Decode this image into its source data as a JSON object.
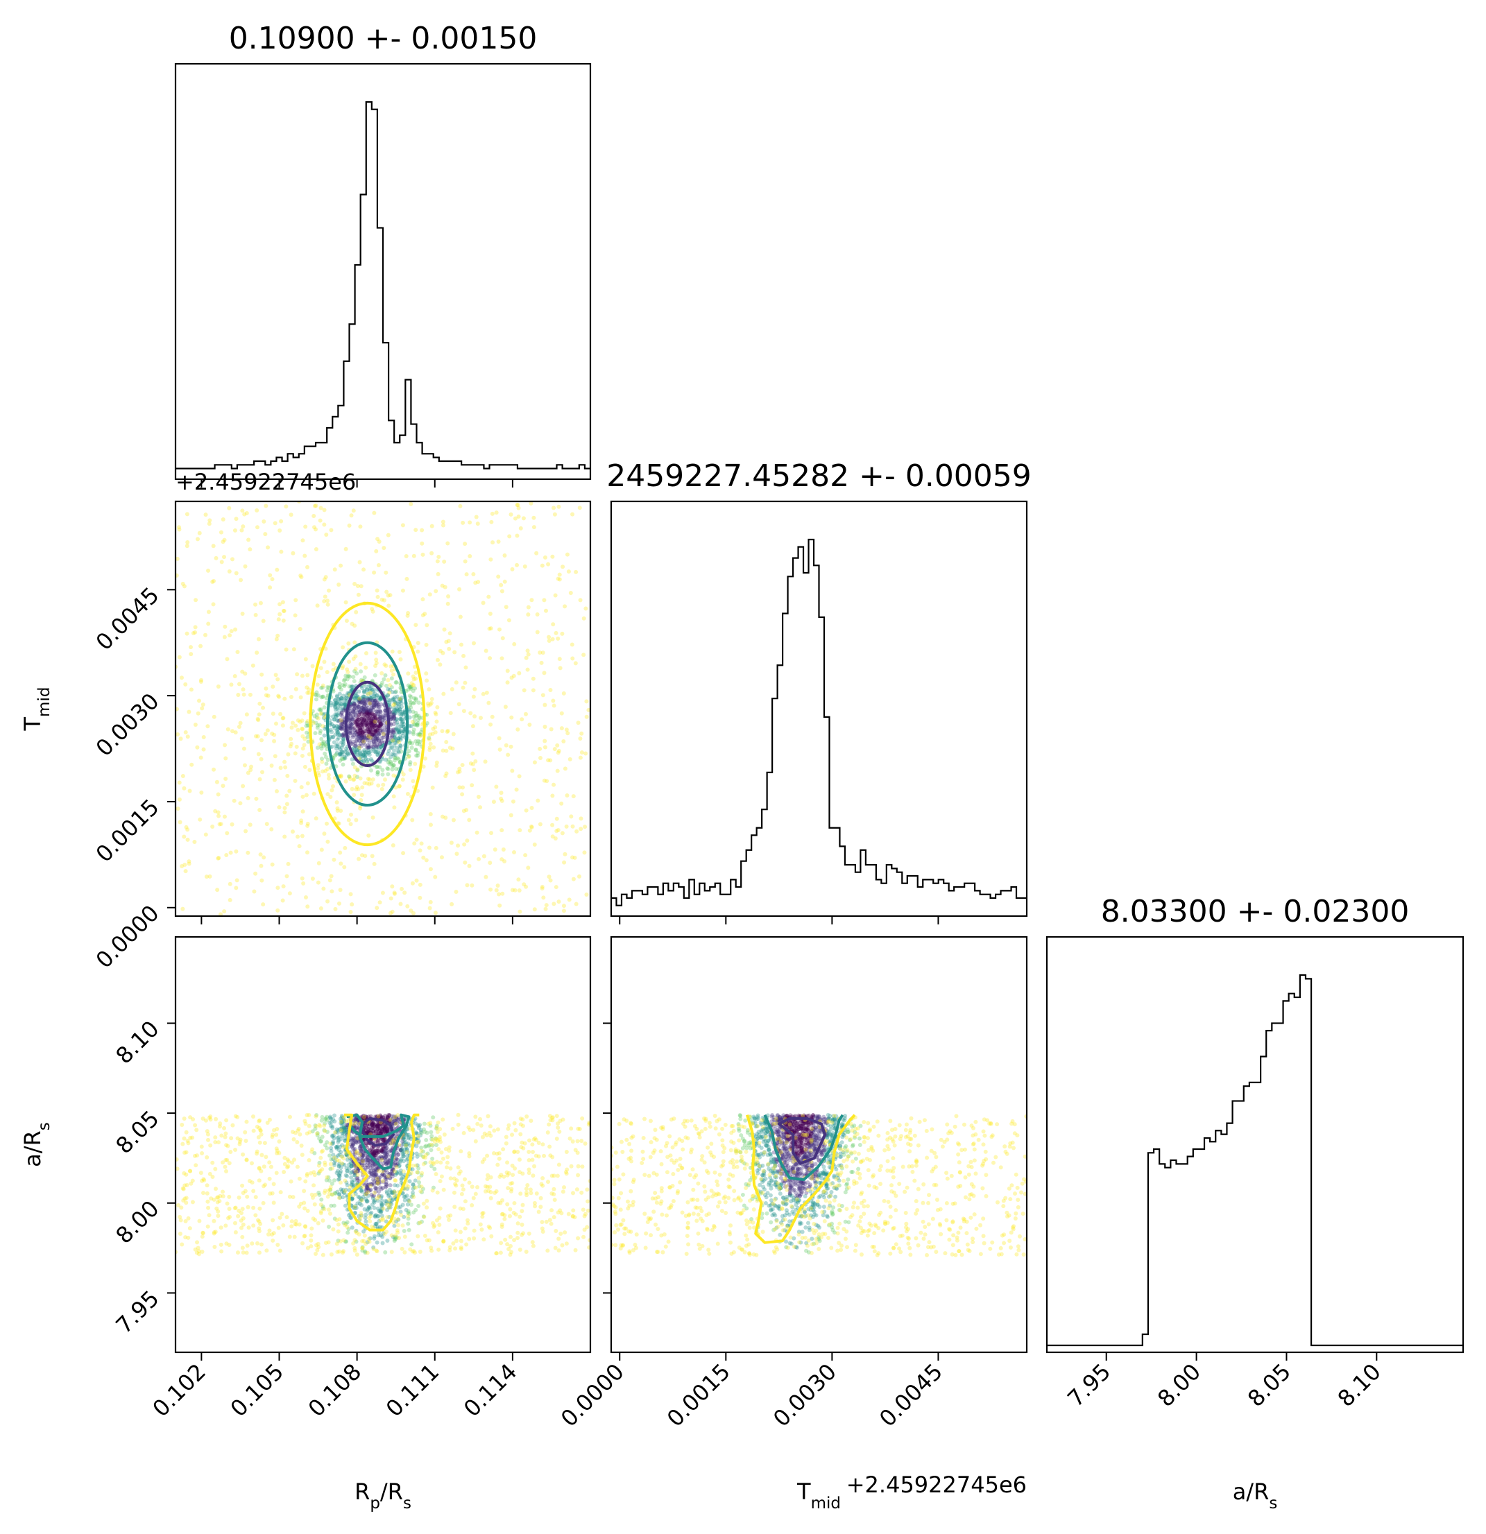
{
  "chart_data": {
    "type": "corner",
    "parameters": [
      {
        "key": "rp",
        "label": "R",
        "label_sub": "p",
        "label_rest": "/R",
        "label_sub2": "s",
        "range": [
          0.101,
          0.117
        ],
        "ticks": [
          "0.102",
          "0.105",
          "0.108",
          "0.111",
          "0.114"
        ],
        "tick_values": [
          0.102,
          0.105,
          0.108,
          0.111,
          0.114
        ],
        "offset": ""
      },
      {
        "key": "tmid",
        "label": "T",
        "label_sub": "mid",
        "label_rest": "",
        "label_sub2": "",
        "range": [
          -0.00012,
          0.00575
        ],
        "ticks": [
          "0.0000",
          "0.0015",
          "0.0030",
          "0.0045"
        ],
        "tick_values": [
          0.0,
          0.0015,
          0.003,
          0.0045
        ],
        "offset": "+2.45922745e6"
      },
      {
        "key": "ars",
        "label": "a/R",
        "label_sub": "s",
        "label_rest": "",
        "label_sub2": "",
        "range": [
          7.917,
          8.148
        ],
        "ticks": [
          "7.95",
          "8.00",
          "8.05",
          "8.10"
        ],
        "tick_values": [
          7.95,
          8.0,
          8.05,
          8.1
        ],
        "offset": ""
      }
    ],
    "titles": [
      "0.10900 +- 0.00150",
      "2459227.45282 +- 0.00059",
      "8.03300 +- 0.02300"
    ],
    "histograms": [
      {
        "param": "rp",
        "bins": [
          0.101,
          0.117
        ],
        "counts": [
          1,
          1,
          1,
          1,
          1,
          1,
          1,
          2,
          2,
          2,
          1,
          2,
          2,
          2,
          3,
          3,
          2,
          3,
          4,
          3,
          5,
          4,
          5,
          7,
          7,
          8,
          8,
          12,
          15,
          18,
          30,
          40,
          56,
          75,
          100,
          98,
          66,
          35,
          14,
          8,
          10,
          25,
          13,
          8,
          5,
          5,
          4,
          3,
          3,
          3,
          3,
          2,
          2,
          2,
          2,
          1,
          2,
          2,
          2,
          2,
          2,
          1,
          1,
          1,
          1,
          1,
          1,
          1,
          2,
          1,
          1,
          1,
          2,
          1
        ]
      },
      {
        "param": "tmid",
        "bins": [
          -0.00012,
          0.00575
        ],
        "counts": [
          3,
          1,
          4,
          3,
          5,
          5,
          4,
          6,
          6,
          4,
          7,
          5,
          7,
          6,
          3,
          8,
          4,
          7,
          5,
          6,
          7,
          4,
          4,
          8,
          6,
          13,
          16,
          20,
          22,
          27,
          37,
          57,
          66,
          80,
          90,
          95,
          98,
          91,
          100,
          93,
          79,
          52,
          22,
          22,
          17,
          12,
          12,
          10,
          16,
          12,
          12,
          8,
          7,
          12,
          11,
          10,
          7,
          9,
          9,
          6,
          8,
          8,
          7,
          8,
          7,
          5,
          6,
          6,
          7,
          7,
          5,
          4,
          4,
          3,
          4,
          5,
          5,
          6,
          3,
          3
        ]
      },
      {
        "param": "ars",
        "bins": [
          7.917,
          8.148
        ],
        "counts": [
          0,
          0,
          0,
          0,
          0,
          0,
          0,
          0,
          0,
          0,
          0,
          0,
          0,
          0,
          0,
          0,
          0,
          3,
          52,
          53,
          49,
          48,
          50,
          49,
          49,
          51,
          53,
          53,
          56,
          55,
          58,
          57,
          60,
          66,
          66,
          70,
          71,
          71,
          78,
          85,
          87,
          87,
          93,
          95,
          94,
          100,
          99,
          0,
          0,
          0,
          0,
          0,
          0,
          0,
          0,
          0,
          0,
          0,
          0,
          0,
          0,
          0,
          0,
          0,
          0,
          0,
          0,
          0,
          0,
          0,
          0,
          0,
          0,
          0
        ]
      }
    ],
    "scatter_panels": [
      {
        "x": "rp",
        "y": "tmid",
        "center": [
          0.1084,
          0.0026
        ],
        "contours": [
          {
            "level": 1,
            "color": "#46327e",
            "shape": "ellipse",
            "rx": 0.00082,
            "ry": 0.00059
          },
          {
            "level": 2,
            "color": "#21918c",
            "shape": "ellipse",
            "rx": 0.00154,
            "ry": 0.00115
          },
          {
            "level": 3,
            "color": "#fde725",
            "shape": "ellipse",
            "rx": 0.0022,
            "ry": 0.00171
          }
        ]
      },
      {
        "x": "rp",
        "y": "ars",
        "center": [
          0.1087,
          8.03
        ],
        "ylim_points": [
          7.971,
          8.049
        ],
        "contours": [
          {
            "level": 1,
            "color": "#46327e",
            "shape": "poly",
            "points": [
              [
                0.1082,
                8.044
              ],
              [
                0.1085,
                8.047
              ],
              [
                0.109,
                8.046
              ],
              [
                0.1093,
                8.043
              ],
              [
                0.1094,
                8.038
              ],
              [
                0.1091,
                8.033
              ],
              [
                0.1087,
                8.032
              ],
              [
                0.1084,
                8.035
              ],
              [
                0.1082,
                8.04
              ]
            ]
          },
          {
            "level": 2,
            "color": "#21918c",
            "shape": "poly",
            "points": [
              [
                0.1076,
                8.048
              ],
              [
                0.108,
                8.049
              ],
              [
                0.1082,
                8.045
              ],
              [
                0.1081,
                8.037
              ],
              [
                0.1083,
                8.03
              ],
              [
                0.1086,
                8.025
              ],
              [
                0.109,
                8.019
              ],
              [
                0.1093,
                8.02
              ],
              [
                0.1094,
                8.028
              ],
              [
                0.1096,
                8.036
              ],
              [
                0.1099,
                8.043
              ],
              [
                0.11,
                8.048
              ],
              [
                0.1097,
                8.049
              ],
              [
                0.1098,
                8.043
              ],
              [
                0.1095,
                8.04
              ],
              [
                0.109,
                8.037
              ],
              [
                0.1082,
                8.037
              ],
              [
                0.1079,
                8.04
              ],
              [
                0.1077,
                8.044
              ]
            ]
          },
          {
            "level": 3,
            "color": "#fde725",
            "shape": "poly",
            "points": [
              [
                0.1075,
                8.049
              ],
              [
                0.1078,
                8.049
              ],
              [
                0.1077,
                8.04
              ],
              [
                0.1076,
                8.03
              ],
              [
                0.108,
                8.022
              ],
              [
                0.1084,
                8.015
              ],
              [
                0.1081,
                8.01
              ],
              [
                0.1077,
                8.005
              ],
              [
                0.1077,
                7.997
              ],
              [
                0.108,
                7.99
              ],
              [
                0.1085,
                7.985
              ],
              [
                0.109,
                7.985
              ],
              [
                0.1093,
                7.99
              ],
              [
                0.1095,
                7.998
              ],
              [
                0.1096,
                8.004
              ],
              [
                0.1098,
                8.01
              ],
              [
                0.11,
                8.018
              ],
              [
                0.1101,
                8.028
              ],
              [
                0.1102,
                8.036
              ],
              [
                0.1101,
                8.045
              ],
              [
                0.1102,
                8.049
              ],
              [
                0.1104,
                8.049
              ]
            ]
          }
        ]
      },
      {
        "x": "tmid",
        "y": "ars",
        "center": [
          0.00253,
          8.03
        ],
        "ylim_points": [
          7.971,
          8.049
        ],
        "contours": [
          {
            "level": 1,
            "color": "#46327e",
            "shape": "poly",
            "points": [
              [
                0.00225,
                8.044
              ],
              [
                0.0024,
                8.047
              ],
              [
                0.00265,
                8.047
              ],
              [
                0.00285,
                8.044
              ],
              [
                0.0029,
                8.038
              ],
              [
                0.00275,
                8.025
              ],
              [
                0.00255,
                8.022
              ],
              [
                0.00245,
                8.028
              ],
              [
                0.00245,
                8.038
              ]
            ]
          },
          {
            "level": 2,
            "color": "#21918c",
            "shape": "poly",
            "points": [
              [
                0.00205,
                8.049
              ],
              [
                0.00215,
                8.04
              ],
              [
                0.0022,
                8.03
              ],
              [
                0.00228,
                8.022
              ],
              [
                0.0024,
                8.014
              ],
              [
                0.0026,
                8.013
              ],
              [
                0.0028,
                8.02
              ],
              [
                0.00298,
                8.03
              ],
              [
                0.00305,
                8.038
              ],
              [
                0.0031,
                8.046
              ],
              [
                0.00315,
                8.049
              ]
            ]
          },
          {
            "level": 3,
            "color": "#fde725",
            "shape": "poly",
            "points": [
              [
                0.0018,
                8.049
              ],
              [
                0.00187,
                8.04
              ],
              [
                0.0019,
                8.03
              ],
              [
                0.00188,
                8.02
              ],
              [
                0.0019,
                8.01
              ],
              [
                0.002,
                8.0
              ],
              [
                0.00196,
                7.99
              ],
              [
                0.00192,
                7.983
              ],
              [
                0.00205,
                7.978
              ],
              [
                0.0023,
                7.979
              ],
              [
                0.0024,
                7.985
              ],
              [
                0.00255,
                7.997
              ],
              [
                0.00275,
                8.005
              ],
              [
                0.0029,
                8.012
              ],
              [
                0.003,
                8.018
              ],
              [
                0.00303,
                8.028
              ],
              [
                0.0031,
                8.038
              ],
              [
                0.00325,
                8.046
              ],
              [
                0.00332,
                8.049
              ]
            ]
          }
        ]
      }
    ],
    "colors": {
      "histogram": "#000000",
      "axes": "#000000",
      "level1": "#46327e",
      "level2": "#21918c",
      "level3": "#fde725",
      "density_core": "#440154"
    }
  }
}
